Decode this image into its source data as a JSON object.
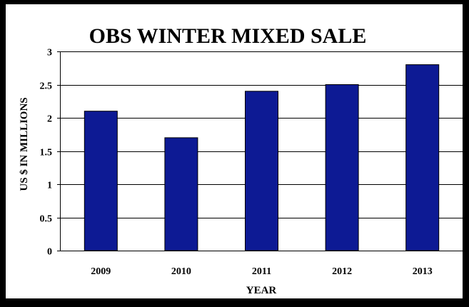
{
  "colors": {
    "bar": "#0d1a94",
    "grid": "#000000",
    "background": "#ffffff",
    "outer": "#000000"
  },
  "chart_data": {
    "type": "bar",
    "title": "OBS WINTER MIXED SALE",
    "xlabel": "YEAR",
    "ylabel": "US $ IN MILLIONS",
    "categories": [
      "2009",
      "2010",
      "2011",
      "2012",
      "2013"
    ],
    "values": [
      2.1,
      1.7,
      2.4,
      2.5,
      2.8
    ],
    "ylim": [
      0,
      3
    ],
    "yticks": [
      "0",
      "0.5",
      "1",
      "1.5",
      "2",
      "2.5",
      "3"
    ],
    "grid": true,
    "legend": "none"
  }
}
